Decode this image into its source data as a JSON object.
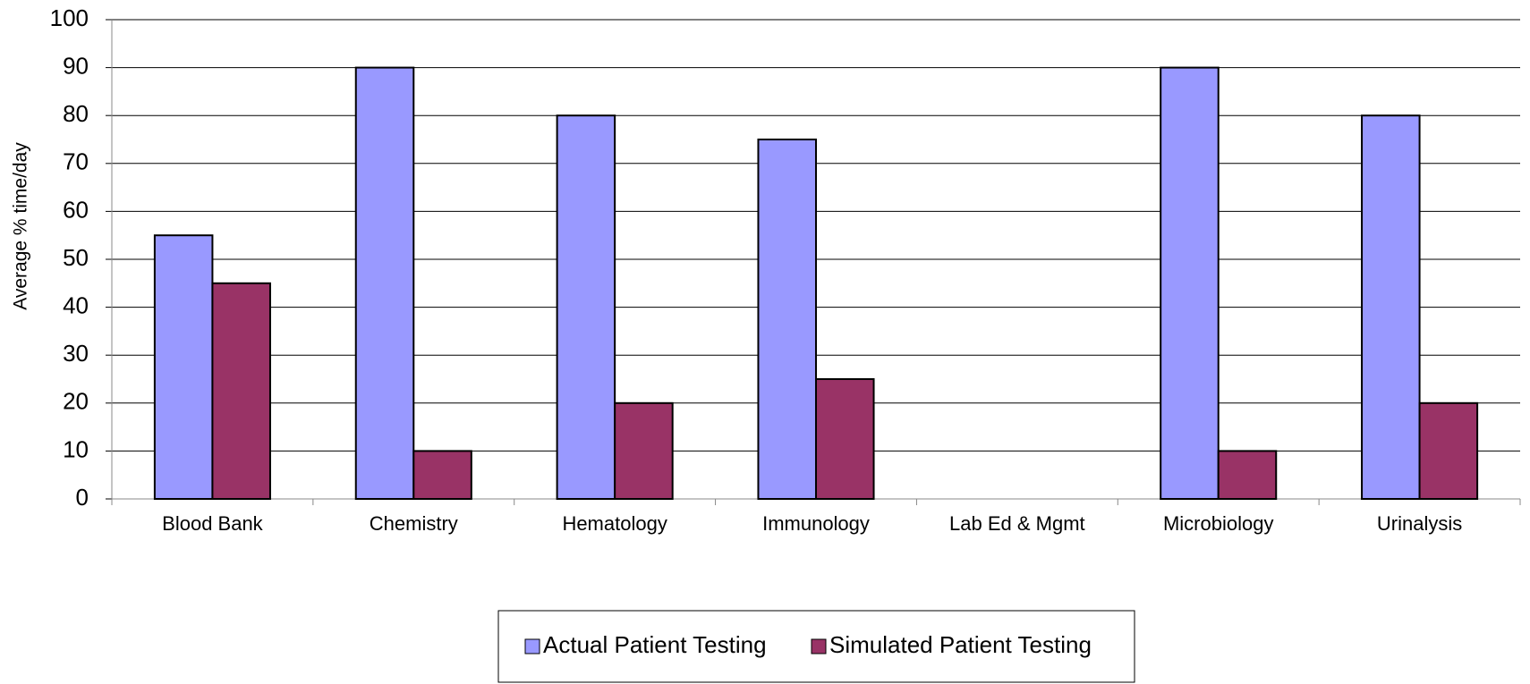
{
  "chart_data": {
    "type": "bar",
    "y_label": "Average % time/day",
    "categories": [
      "Blood Bank",
      "Chemistry",
      "Hematology",
      "Immunology",
      "Lab Ed & Mgmt",
      "Microbiology",
      "Urinalysis"
    ],
    "series": [
      {
        "name": "Actual Patient Testing",
        "color": "#9999ff",
        "values": [
          55,
          90,
          80,
          75,
          null,
          90,
          80
        ]
      },
      {
        "name": "Simulated Patient Testing",
        "color": "#993366",
        "values": [
          45,
          10,
          20,
          25,
          null,
          10,
          20
        ]
      }
    ],
    "ylim": [
      0,
      100
    ],
    "yticks": [
      0,
      10,
      20,
      30,
      40,
      50,
      60,
      70,
      80,
      90,
      100
    ],
    "grid": true,
    "legend": "bottom"
  }
}
